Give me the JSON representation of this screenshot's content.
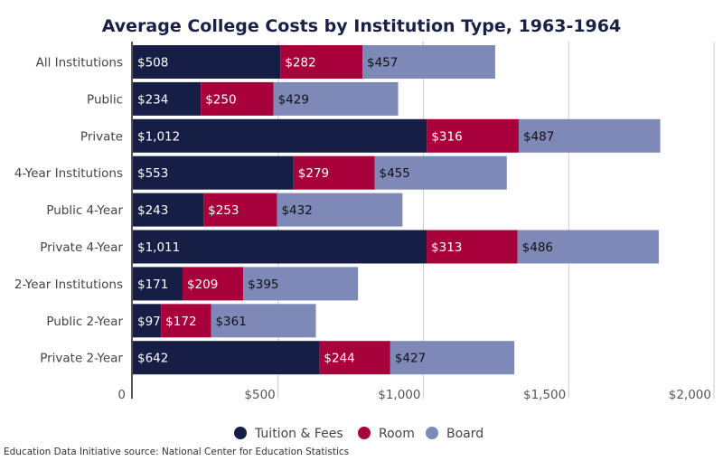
{
  "chart_data": {
    "type": "bar",
    "orientation": "horizontal",
    "stacked": true,
    "title": "Average College Costs by Institution Type, 1963-1964",
    "categories": [
      "All Institutions",
      "Public",
      "Private",
      "4-Year Institutions",
      "Public 4-Year",
      "Private 4-Year",
      "2-Year Institutions",
      "Public 2-Year",
      "Private 2-Year"
    ],
    "series": [
      {
        "name": "Tuition & Fees",
        "color": "#171e45",
        "label_color": "#ffffff",
        "values": [
          508,
          234,
          1012,
          553,
          243,
          1011,
          171,
          97,
          642
        ],
        "labels": [
          "$508",
          "$234",
          "$1,012",
          "$553",
          "$243",
          "$1,011",
          "$171",
          "$97",
          "$642"
        ]
      },
      {
        "name": "Room",
        "color": "#a8003a",
        "label_color": "#ffffff",
        "values": [
          282,
          250,
          316,
          279,
          253,
          313,
          209,
          172,
          244
        ],
        "labels": [
          "$282",
          "$250",
          "$316",
          "$279",
          "$253",
          "$313",
          "$209",
          "$172",
          "$244"
        ]
      },
      {
        "name": "Board",
        "color": "#7e89b8",
        "label_color": "#111111",
        "values": [
          457,
          429,
          487,
          455,
          432,
          486,
          395,
          361,
          427
        ],
        "labels": [
          "$457",
          "$429",
          "$487",
          "$455",
          "$432",
          "$486",
          "$395",
          "$361",
          "$427"
        ]
      }
    ],
    "xlim": [
      0,
      2000
    ],
    "x_ticks": [
      0,
      500,
      1000,
      1500,
      2000
    ],
    "x_tick_labels": [
      "0",
      "$500",
      "$1,000",
      "$1,500",
      "$2,000"
    ],
    "grid": true,
    "legend": "bottom-center"
  },
  "source": "Education Data Initiative source: National Center for Education Statistics"
}
